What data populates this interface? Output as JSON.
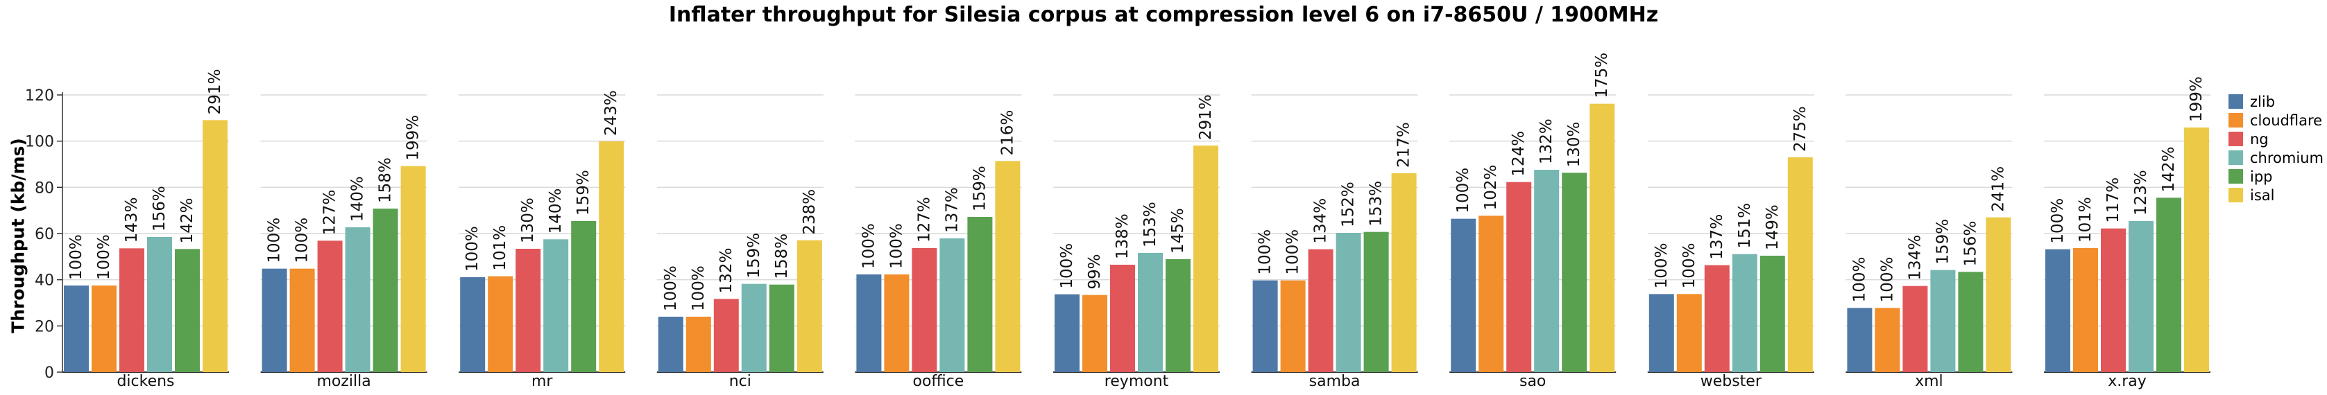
{
  "chart_data": {
    "type": "bar",
    "title": "Inflater throughput for Silesia corpus at compression level 6 on i7-8650U / 1900MHz",
    "ylabel": "Throughput (kb/ms)",
    "xlabel": "",
    "ylim": [
      0,
      120
    ],
    "yticks": [
      "0",
      "20",
      "40",
      "60",
      "80",
      "100",
      "120"
    ],
    "grid": true,
    "legend_position": "right",
    "categories": [
      "dickens",
      "mozilla",
      "mr",
      "nci",
      "ooffice",
      "reymont",
      "samba",
      "sao",
      "webster",
      "xml",
      "x.ray"
    ],
    "series": [
      {
        "name": "zlib",
        "color": "#4e79a7",
        "values": [
          37.5,
          44.8,
          41.1,
          24.0,
          42.3,
          33.7,
          39.7,
          66.4,
          33.8,
          27.8,
          53.2
        ],
        "labels": [
          "100%",
          "100%",
          "100%",
          "100%",
          "100%",
          "100%",
          "100%",
          "100%",
          "100%",
          "100%",
          "100%"
        ]
      },
      {
        "name": "cloudflare",
        "color": "#f28e2b",
        "values": [
          37.5,
          44.8,
          41.5,
          24.0,
          42.3,
          33.4,
          39.7,
          67.7,
          33.8,
          27.8,
          53.7
        ],
        "labels": [
          "100%",
          "100%",
          "101%",
          "100%",
          "100%",
          "99%",
          "100%",
          "102%",
          "100%",
          "100%",
          "101%"
        ]
      },
      {
        "name": "ng",
        "color": "#e15759",
        "values": [
          53.6,
          56.9,
          53.4,
          31.7,
          53.7,
          46.5,
          53.2,
          82.3,
          46.3,
          37.3,
          62.2
        ],
        "labels": [
          "143%",
          "127%",
          "130%",
          "132%",
          "127%",
          "138%",
          "134%",
          "124%",
          "137%",
          "134%",
          "117%"
        ]
      },
      {
        "name": "chromium",
        "color": "#76b7b2",
        "values": [
          58.5,
          62.7,
          57.5,
          38.2,
          57.9,
          51.6,
          60.3,
          87.6,
          51.1,
          44.2,
          65.4
        ],
        "labels": [
          "156%",
          "140%",
          "140%",
          "159%",
          "137%",
          "153%",
          "152%",
          "132%",
          "151%",
          "159%",
          "123%"
        ]
      },
      {
        "name": "ipp",
        "color": "#59a14f",
        "values": [
          53.3,
          70.8,
          65.4,
          37.9,
          67.2,
          48.9,
          60.7,
          86.3,
          50.4,
          43.4,
          75.5
        ],
        "labels": [
          "142%",
          "158%",
          "159%",
          "158%",
          "159%",
          "145%",
          "153%",
          "130%",
          "149%",
          "156%",
          "142%"
        ]
      },
      {
        "name": "isal",
        "color": "#edc948",
        "values": [
          109.1,
          89.2,
          99.9,
          57.1,
          91.4,
          98.1,
          86.1,
          116.2,
          93.0,
          67.0,
          105.9
        ],
        "labels": [
          "291%",
          "199%",
          "243%",
          "238%",
          "216%",
          "291%",
          "217%",
          "175%",
          "275%",
          "241%",
          "199%"
        ]
      }
    ]
  }
}
